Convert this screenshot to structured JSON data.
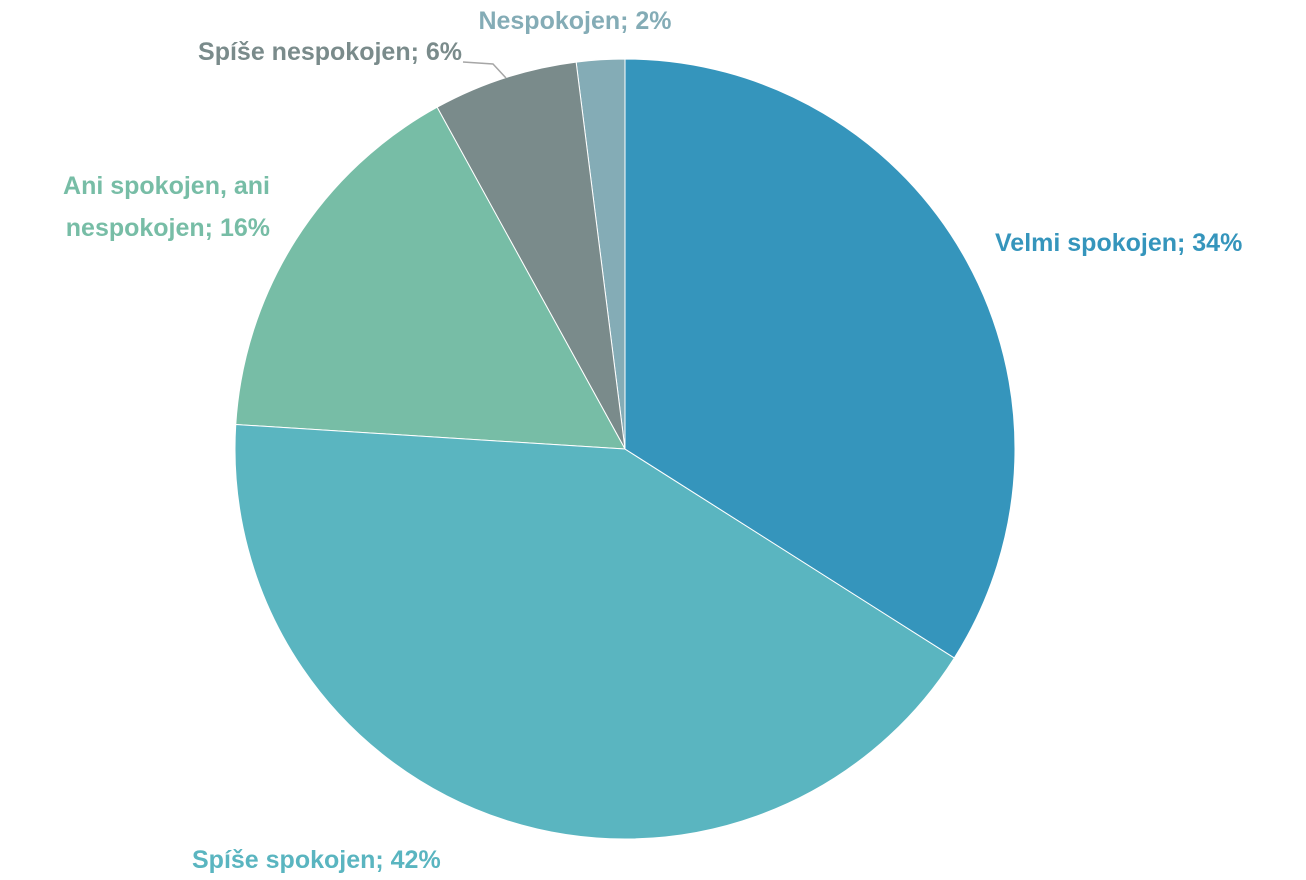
{
  "chart_data": {
    "type": "pie",
    "values": [
      34,
      42,
      16,
      6,
      2
    ],
    "value_labels": [
      "Velmi spokojen; 34%",
      "Spíše spokojen; 42%",
      "Ani spokojen, ani nespokojen; 16%",
      "Spíše nespokojen; 6%",
      "Nespokojen; 2%"
    ],
    "colors": [
      "#3595bc",
      "#5ab5c0",
      "#77bda6",
      "#7a8b8b",
      "#84acb6"
    ]
  }
}
